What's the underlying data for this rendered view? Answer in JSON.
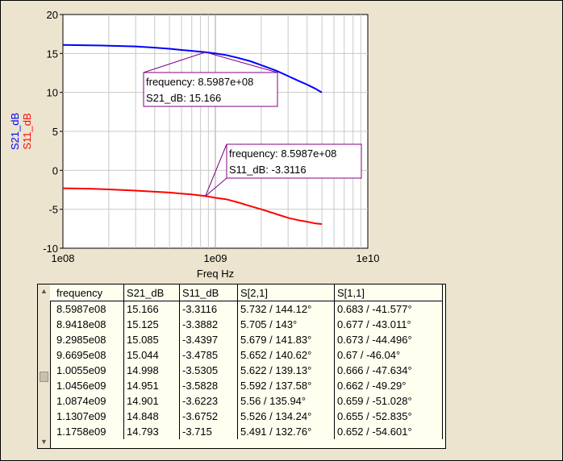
{
  "colors": {
    "s21": "#0000ff",
    "s11": "#ff0000",
    "marker_box": "#800080",
    "background": "#ece4cf",
    "plot_bg": "#ffffff",
    "grid": "#c8c8c8"
  },
  "chart_data": {
    "type": "line",
    "x_scale": "log",
    "xlim": [
      100000000,
      10000000000
    ],
    "ylim": [
      -10,
      20
    ],
    "x_ticks": [
      "1e08",
      "1e09",
      "1e10"
    ],
    "y_ticks": [
      "20",
      "15",
      "10",
      "5",
      "0",
      "-5",
      "-10"
    ],
    "xlabel": "Freq Hz",
    "ylabel": [
      "S21_dB",
      "S11_dB"
    ],
    "grid": true,
    "series": [
      {
        "name": "S21_dB",
        "color": "#0000ff",
        "x": [
          100000000,
          150000000,
          200000000,
          300000000,
          400000000,
          500000000,
          600000000,
          700000000,
          859870000,
          1005500000,
          1175800000,
          1400000000,
          1700000000,
          2000000000,
          2500000000,
          3000000000,
          3500000000,
          4000000000,
          4500000000,
          5000000000
        ],
        "y": [
          16.1,
          16.05,
          16.0,
          15.9,
          15.75,
          15.6,
          15.45,
          15.33,
          15.166,
          14.998,
          14.793,
          14.45,
          14.0,
          13.5,
          12.8,
          12.1,
          11.5,
          11.0,
          10.5,
          10.0
        ]
      },
      {
        "name": "S11_dB",
        "color": "#ff0000",
        "x": [
          100000000,
          150000000,
          200000000,
          300000000,
          400000000,
          500000000,
          600000000,
          700000000,
          859870000,
          1005500000,
          1175800000,
          1400000000,
          1700000000,
          2000000000,
          2500000000,
          3000000000,
          3500000000,
          4000000000,
          4500000000,
          5000000000
        ],
        "y": [
          -2.3,
          -2.35,
          -2.45,
          -2.6,
          -2.75,
          -2.85,
          -3.0,
          -3.1,
          -3.3116,
          -3.5305,
          -3.715,
          -4.1,
          -4.6,
          -5.0,
          -5.6,
          -6.1,
          -6.4,
          -6.6,
          -6.8,
          -6.9
        ]
      }
    ],
    "markers": [
      {
        "series": "S21_dB",
        "x": 859870000,
        "y": 15.166,
        "line1": "frequency: 8.5987e+08",
        "line2": "S21_dB: 15.166"
      },
      {
        "series": "S11_dB",
        "x": 859870000,
        "y": -3.3116,
        "line1": "frequency: 8.5987e+08",
        "line2": "S11_dB: -3.3116"
      }
    ]
  },
  "table": {
    "columns": [
      "frequency",
      "S21_dB",
      "S11_dB",
      "S[2,1]",
      "S[1,1]"
    ],
    "rows": [
      [
        "8.5987e08",
        "15.166",
        "-3.3116",
        "5.732 / 144.12°",
        "0.683 / -41.577°"
      ],
      [
        "8.9418e08",
        "15.125",
        "-3.3882",
        "5.705 / 143°",
        "0.677 / -43.011°"
      ],
      [
        "9.2985e08",
        "15.085",
        "-3.4397",
        "5.679 / 141.83°",
        "0.673 / -44.496°"
      ],
      [
        "9.6695e08",
        "15.044",
        "-3.4785",
        "5.652 / 140.62°",
        "0.67 / -46.04°"
      ],
      [
        "1.0055e09",
        "14.998",
        "-3.5305",
        "5.622 / 139.13°",
        "0.666 / -47.634°"
      ],
      [
        "1.0456e09",
        "14.951",
        "-3.5828",
        "5.592 / 137.58°",
        "0.662 / -49.29°"
      ],
      [
        "1.0874e09",
        "14.901",
        "-3.6223",
        "5.56 / 135.94°",
        "0.659 / -51.028°"
      ],
      [
        "1.1307e09",
        "14.848",
        "-3.6752",
        "5.526 / 134.24°",
        "0.655 / -52.835°"
      ],
      [
        "1.1758e09",
        "14.793",
        "-3.715",
        "5.491 / 132.76°",
        "0.652 / -54.601°"
      ]
    ]
  },
  "scrollbar": {
    "up_icon": "arrow-up-icon",
    "down_icon": "arrow-down-icon"
  }
}
